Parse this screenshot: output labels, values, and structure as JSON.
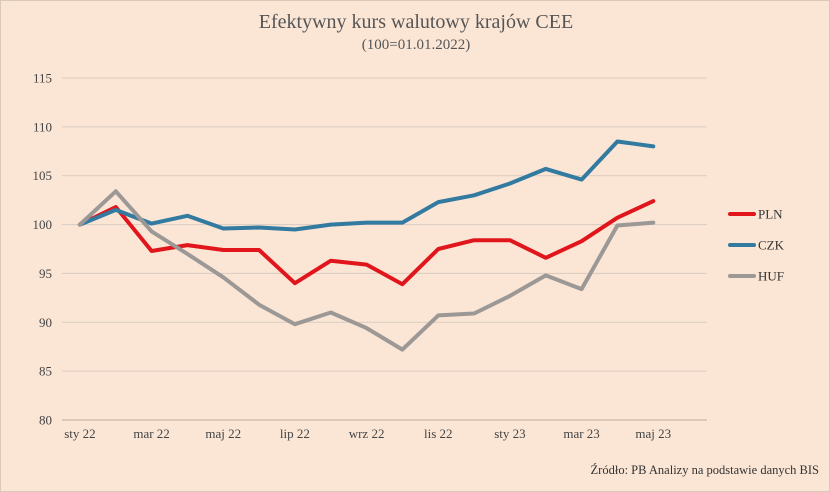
{
  "chart_data": {
    "type": "line",
    "title": "Efektywny kurs walutowy krajów CEE",
    "subtitle": "(100=01.01.2022)",
    "source": "Źródło: PB Analizy na podstawie danych BIS",
    "ylim": [
      80,
      115
    ],
    "yticks": [
      80,
      85,
      90,
      95,
      100,
      105,
      110,
      115
    ],
    "grid": true,
    "legend_position": "right",
    "x": [
      "2022-01",
      "2022-02",
      "2022-03",
      "2022-04",
      "2022-05",
      "2022-06",
      "2022-07",
      "2022-08",
      "2022-09",
      "2022-10",
      "2022-11",
      "2022-12",
      "2023-01",
      "2023-02",
      "2023-03",
      "2023-04",
      "2023-05",
      "2023-06"
    ],
    "x_tick_labels": [
      "sty 22",
      "",
      "mar 22",
      "",
      "maj 22",
      "",
      "lip 22",
      "",
      "wrz 22",
      "",
      "lis 22",
      "",
      "sty 23",
      "",
      "mar 23",
      "",
      "maj 23",
      ""
    ],
    "series": [
      {
        "name": "PLN",
        "color": "#e0161c",
        "values": [
          100,
          101.8,
          97.3,
          97.9,
          97.4,
          97.4,
          94.0,
          96.3,
          95.9,
          93.9,
          97.5,
          98.4,
          98.4,
          96.6,
          98.3,
          100.7,
          102.4,
          null
        ]
      },
      {
        "name": "CZK",
        "color": "#327aa0",
        "values": [
          100,
          101.5,
          100.1,
          100.9,
          99.6,
          99.7,
          99.5,
          100.0,
          100.2,
          100.2,
          102.3,
          103.0,
          104.2,
          105.7,
          104.6,
          108.5,
          108.0,
          null
        ]
      },
      {
        "name": "HUF",
        "color": "#9c9896",
        "values": [
          100,
          103.4,
          99.3,
          97.0,
          94.6,
          91.8,
          89.8,
          91.0,
          89.4,
          87.2,
          90.7,
          90.9,
          92.7,
          94.8,
          93.4,
          99.9,
          100.2,
          null
        ]
      }
    ]
  }
}
